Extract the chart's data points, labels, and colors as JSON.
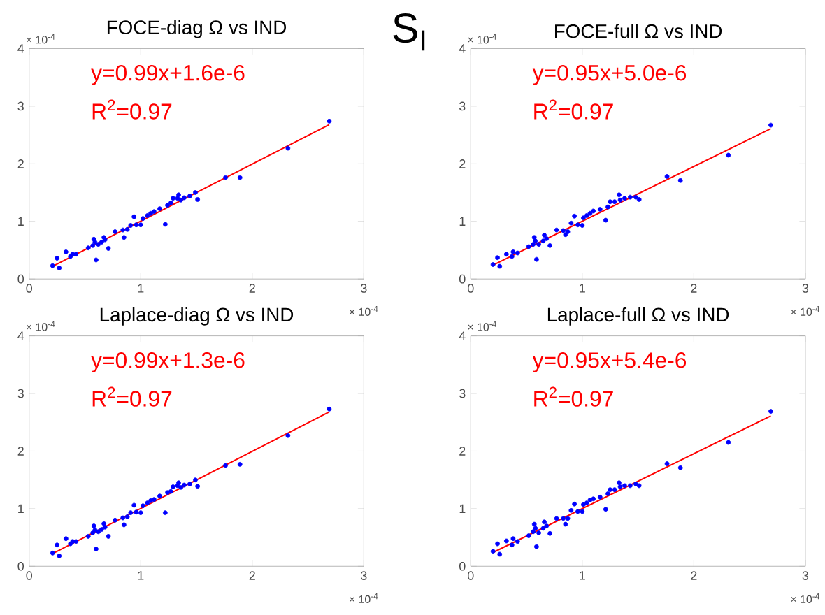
{
  "chart_data": [
    {
      "type": "other",
      "title": "S$_{I}$"
    },
    {
      "type": "scatter",
      "title": "FOCE-diag Ω vs IND",
      "xlim": [
        0,
        3
      ],
      "ylim": [
        0,
        4
      ],
      "xticks": [
        0,
        1,
        2,
        3
      ],
      "yticks": [
        0,
        1,
        2,
        3,
        4
      ],
      "grid": false,
      "x": [
        0.21,
        0.25,
        0.27,
        0.33,
        0.37,
        0.39,
        0.42,
        0.53,
        0.57,
        0.58,
        0.59,
        0.6,
        0.62,
        0.65,
        0.67,
        0.68,
        0.71,
        0.77,
        0.84,
        0.85,
        0.88,
        0.91,
        0.94,
        0.96,
        1.0,
        1.02,
        1.06,
        1.09,
        1.12,
        1.17,
        1.22,
        1.24,
        1.27,
        1.29,
        1.33,
        1.34,
        1.36,
        1.39,
        1.44,
        1.49,
        1.51,
        1.76,
        1.89,
        2.32,
        2.69
      ],
      "series": [
        {
          "marker": "circle",
          "color": "#0000ff",
          "values": [
            0.23,
            0.36,
            0.19,
            0.47,
            0.39,
            0.43,
            0.43,
            0.54,
            0.58,
            0.69,
            0.64,
            0.33,
            0.6,
            0.64,
            0.72,
            0.68,
            0.53,
            0.82,
            0.85,
            0.72,
            0.86,
            0.93,
            1.08,
            0.94,
            0.94,
            1.05,
            1.1,
            1.14,
            1.17,
            1.22,
            0.95,
            1.28,
            1.32,
            1.4,
            1.4,
            1.46,
            1.37,
            1.41,
            1.44,
            1.5,
            1.38,
            1.76,
            1.76,
            2.27,
            2.74
          ]
        },
        {
          "type": "line",
          "marker": "none",
          "color": "#ff0000",
          "x": [
            0.21,
            2.69
          ],
          "values": [
            0.22,
            2.68
          ]
        }
      ],
      "annotations": [
        "y=0.99x+1.6e-6",
        "R$^{2}$=0.97",
        "× 10$^{-4}$",
        "× 10$^{-4}$"
      ]
    },
    {
      "type": "scatter",
      "title": "FOCE-full Ω vs IND",
      "xlim": [
        0,
        3
      ],
      "ylim": [
        0,
        4
      ],
      "xticks": [
        0,
        1,
        2,
        3
      ],
      "yticks": [
        0,
        1,
        2,
        3,
        4
      ],
      "grid": false,
      "x": [
        0.2,
        0.24,
        0.26,
        0.32,
        0.37,
        0.38,
        0.42,
        0.52,
        0.56,
        0.57,
        0.58,
        0.59,
        0.61,
        0.65,
        0.66,
        0.68,
        0.71,
        0.77,
        0.83,
        0.85,
        0.87,
        0.9,
        0.93,
        0.96,
        1.0,
        1.01,
        1.04,
        1.07,
        1.1,
        1.16,
        1.21,
        1.23,
        1.25,
        1.29,
        1.33,
        1.34,
        1.38,
        1.43,
        1.48,
        1.51,
        1.76,
        1.88,
        2.31,
        2.69
      ],
      "series": [
        {
          "marker": "circle",
          "color": "#0000ff",
          "values": [
            0.25,
            0.37,
            0.22,
            0.43,
            0.39,
            0.47,
            0.45,
            0.56,
            0.6,
            0.72,
            0.66,
            0.34,
            0.6,
            0.66,
            0.76,
            0.7,
            0.58,
            0.85,
            0.84,
            0.77,
            0.82,
            0.97,
            1.09,
            0.94,
            0.93,
            1.06,
            1.1,
            1.14,
            1.18,
            1.21,
            1.02,
            1.25,
            1.34,
            1.34,
            1.46,
            1.37,
            1.4,
            1.42,
            1.42,
            1.38,
            1.78,
            1.71,
            2.15,
            2.67
          ]
        },
        {
          "type": "line",
          "marker": "none",
          "color": "#ff0000",
          "x": [
            0.2,
            2.69
          ],
          "values": [
            0.24,
            2.61
          ]
        }
      ],
      "annotations": [
        "y=0.95x+5.0e-6",
        "R$^{2}$=0.97",
        "× 10$^{-4}$",
        "× 10$^{-4}$"
      ]
    },
    {
      "type": "scatter",
      "title": "Laplace-diag Ω vs IND",
      "xlim": [
        0,
        3
      ],
      "ylim": [
        0,
        4
      ],
      "xticks": [
        0,
        1,
        2,
        3
      ],
      "yticks": [
        0,
        1,
        2,
        3,
        4
      ],
      "grid": false,
      "x": [
        0.21,
        0.25,
        0.27,
        0.33,
        0.37,
        0.39,
        0.42,
        0.53,
        0.57,
        0.58,
        0.59,
        0.6,
        0.62,
        0.65,
        0.67,
        0.68,
        0.71,
        0.77,
        0.84,
        0.85,
        0.88,
        0.91,
        0.94,
        0.96,
        1.0,
        1.02,
        1.06,
        1.09,
        1.12,
        1.17,
        1.22,
        1.24,
        1.27,
        1.29,
        1.33,
        1.34,
        1.36,
        1.39,
        1.44,
        1.49,
        1.51,
        1.76,
        1.89,
        2.32,
        2.69
      ],
      "series": [
        {
          "marker": "circle",
          "color": "#0000ff",
          "values": [
            0.23,
            0.37,
            0.18,
            0.48,
            0.39,
            0.43,
            0.43,
            0.52,
            0.58,
            0.7,
            0.63,
            0.3,
            0.6,
            0.64,
            0.74,
            0.68,
            0.52,
            0.8,
            0.84,
            0.72,
            0.86,
            0.93,
            1.06,
            0.94,
            0.93,
            1.05,
            1.1,
            1.14,
            1.16,
            1.22,
            0.93,
            1.28,
            1.3,
            1.38,
            1.4,
            1.45,
            1.37,
            1.41,
            1.43,
            1.5,
            1.39,
            1.75,
            1.77,
            2.27,
            2.73
          ]
        },
        {
          "type": "line",
          "marker": "none",
          "color": "#ff0000",
          "x": [
            0.21,
            2.69
          ],
          "values": [
            0.22,
            2.68
          ]
        }
      ],
      "annotations": [
        "y=0.99x+1.3e-6",
        "R$^{2}$=0.97",
        "× 10$^{-4}$",
        "× 10$^{-4}$"
      ]
    },
    {
      "type": "scatter",
      "title": "Laplace-full Ω vs IND",
      "xlim": [
        0,
        3
      ],
      "ylim": [
        0,
        4
      ],
      "xticks": [
        0,
        1,
        2,
        3
      ],
      "yticks": [
        0,
        1,
        2,
        3,
        4
      ],
      "grid": false,
      "x": [
        0.2,
        0.24,
        0.26,
        0.32,
        0.37,
        0.38,
        0.42,
        0.52,
        0.56,
        0.57,
        0.58,
        0.59,
        0.61,
        0.65,
        0.66,
        0.68,
        0.71,
        0.77,
        0.83,
        0.85,
        0.87,
        0.9,
        0.93,
        0.96,
        1.0,
        1.01,
        1.04,
        1.07,
        1.1,
        1.16,
        1.21,
        1.23,
        1.25,
        1.29,
        1.33,
        1.34,
        1.38,
        1.43,
        1.48,
        1.51,
        1.76,
        1.88,
        2.31,
        2.69
      ],
      "series": [
        {
          "marker": "circle",
          "color": "#0000ff",
          "values": [
            0.26,
            0.39,
            0.21,
            0.44,
            0.37,
            0.48,
            0.43,
            0.53,
            0.6,
            0.73,
            0.66,
            0.34,
            0.58,
            0.66,
            0.77,
            0.7,
            0.57,
            0.83,
            0.83,
            0.73,
            0.83,
            0.97,
            1.08,
            0.95,
            0.95,
            1.07,
            1.1,
            1.15,
            1.17,
            1.2,
            0.99,
            1.26,
            1.33,
            1.33,
            1.45,
            1.38,
            1.4,
            1.4,
            1.43,
            1.4,
            1.78,
            1.71,
            2.15,
            2.69
          ]
        },
        {
          "type": "line",
          "marker": "none",
          "color": "#ff0000",
          "x": [
            0.2,
            2.69
          ],
          "values": [
            0.24,
            2.61
          ]
        }
      ],
      "annotations": [
        "y=0.95x+5.4e-6",
        "R$^{2}$=0.97",
        "× 10$^{-4}$",
        "× 10$^{-4}$"
      ]
    }
  ]
}
